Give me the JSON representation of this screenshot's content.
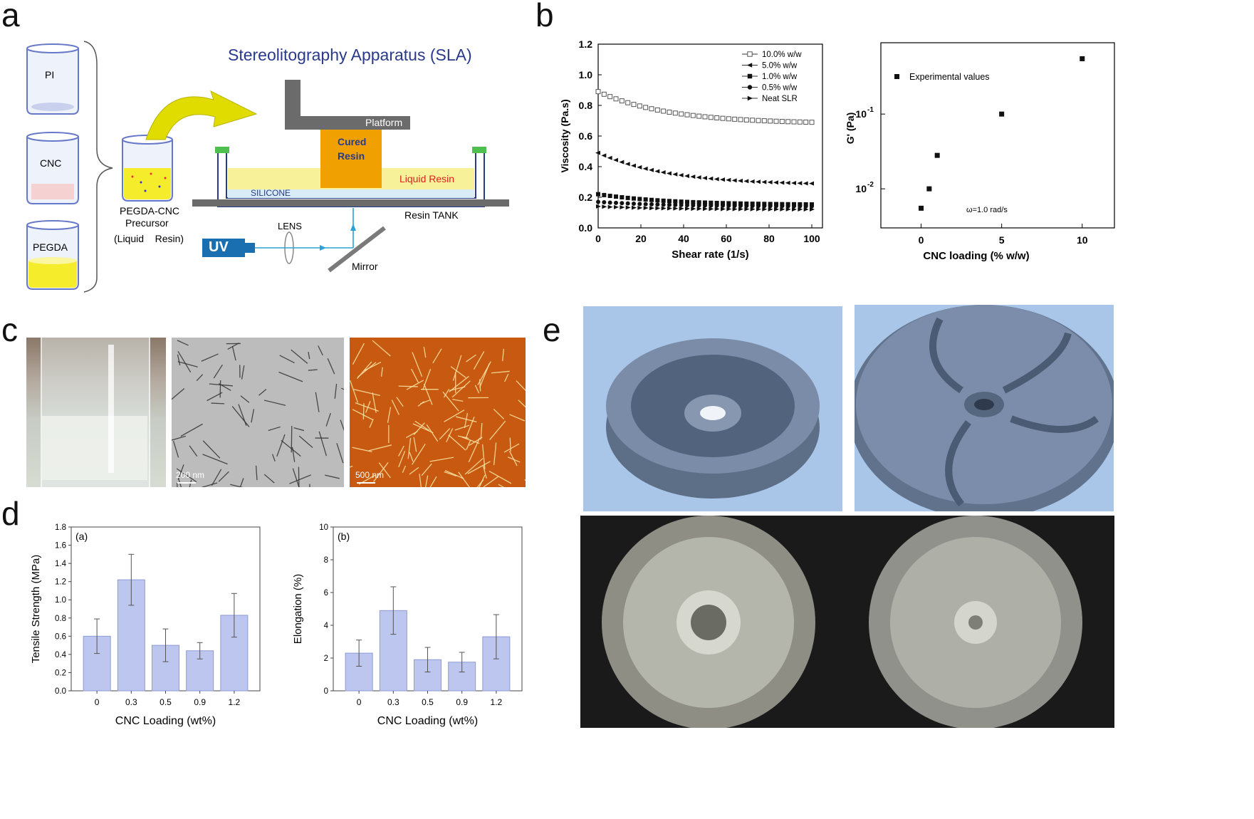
{
  "panels": {
    "a": "a",
    "b": "b",
    "c": "c",
    "d": "d",
    "e": "e"
  },
  "panel_a": {
    "title": "Stereolitography Apparatus (SLA)",
    "beaker_labels": [
      "PI",
      "CNC",
      "PEGDA"
    ],
    "precursor_label_1": "PEGDA-CNC",
    "precursor_label_2": "Precursor",
    "precursor_label_3": "(Liquid    Resin)",
    "platform": "Platform",
    "cured_1": "Cured",
    "cured_2": "Resin",
    "liquid_resin": "Liquid Resin",
    "silicone": "SILICONE",
    "resin_tank": "Resin TANK",
    "lens": "LENS",
    "uv": "UV",
    "mirror": "Mirror",
    "colors": {
      "title": "#2a3a8a",
      "resin": "#f7f29a",
      "cured": "#f0a000",
      "uv": "#1a6fb0",
      "liquid_text": "#e02020",
      "arrow": "#d9d400"
    }
  },
  "panel_c": {
    "scale_1": "200 nm",
    "scale_2": "500 nm"
  },
  "panel_e": {},
  "chart_data": [
    {
      "id": "b-left",
      "type": "scatter",
      "xlabel": "Shear rate (1/s)",
      "ylabel": "Viscosity (Pa.s)",
      "xlim": [
        0,
        105
      ],
      "ylim": [
        0,
        1.2
      ],
      "xticks": [
        "0",
        "20",
        "40",
        "60",
        "80",
        "100"
      ],
      "yticks": [
        "0.0",
        "0.2",
        "0.4",
        "0.6",
        "0.8",
        "1.0",
        "1.2"
      ],
      "series": [
        {
          "name": "10.0% w/w",
          "marker": "open-square",
          "start": 0.89,
          "end": 0.68
        },
        {
          "name": "5.0% w/w",
          "marker": "left-triangle",
          "start": 0.49,
          "end": 0.28
        },
        {
          "name": "1.0% w/w",
          "marker": "square",
          "start": 0.22,
          "end": 0.15
        },
        {
          "name": "0.5% w/w",
          "marker": "circle",
          "start": 0.17,
          "end": 0.14
        },
        {
          "name": "Neat SLR",
          "marker": "right-triangle",
          "start": 0.14,
          "end": 0.12
        }
      ]
    },
    {
      "id": "b-right",
      "type": "scatter",
      "xlabel": "CNC loading (% w/w)",
      "ylabel": "G' (Pa)",
      "yscale": "log",
      "xlim": [
        -2.5,
        12
      ],
      "ylim": [
        0.003,
        0.9
      ],
      "xticks": [
        "0",
        "5",
        "10"
      ],
      "y_ticks": [
        {
          "base": "10",
          "exp": "-2",
          "value": 0.01
        },
        {
          "base": "10",
          "exp": "-1",
          "value": 0.1
        }
      ],
      "x": [
        0,
        0.5,
        1,
        5,
        10
      ],
      "values": [
        0.0055,
        0.01,
        0.028,
        0.1,
        0.55
      ],
      "legend": "Experimental values",
      "annotation": "ω=1.0 rad/s"
    },
    {
      "id": "d-left",
      "type": "bar",
      "panel_label": "(a)",
      "xlabel": "CNC Loading (wt%)",
      "ylabel": "Tensile Strength (MPa)",
      "ylim": [
        0,
        1.8
      ],
      "yticks": [
        "0.0",
        "0.2",
        "0.4",
        "0.6",
        "0.8",
        "1.0",
        "1.2",
        "1.4",
        "1.6",
        "1.8"
      ],
      "categories": [
        "0",
        "0.3",
        "0.5",
        "0.9",
        "1.2"
      ],
      "values": [
        0.6,
        1.22,
        0.5,
        0.44,
        0.83
      ],
      "errors": [
        0.19,
        0.28,
        0.18,
        0.09,
        0.24
      ]
    },
    {
      "id": "d-right",
      "type": "bar",
      "panel_label": "(b)",
      "xlabel": "CNC Loading (wt%)",
      "ylabel": "Elongation (%)",
      "ylim": [
        0,
        10
      ],
      "yticks": [
        "0",
        "2",
        "4",
        "6",
        "8",
        "10"
      ],
      "categories": [
        "0",
        "0.3",
        "0.5",
        "0.9",
        "1.2"
      ],
      "values": [
        2.3,
        4.9,
        1.9,
        1.75,
        3.3
      ],
      "errors": [
        0.8,
        1.45,
        0.75,
        0.6,
        1.35
      ]
    }
  ]
}
